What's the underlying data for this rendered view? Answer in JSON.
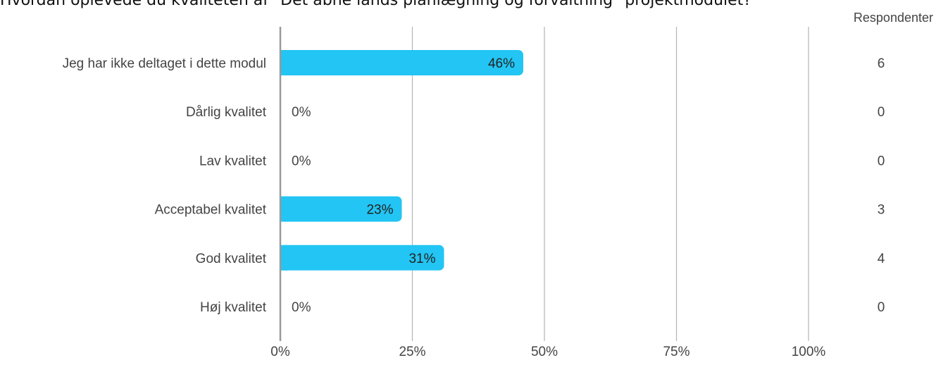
{
  "chart_data": {
    "type": "bar",
    "orientation": "horizontal",
    "title": "Hvordan oplevede du kvaliteten af \"Det åbne lands planlægning og forvaltning\" projektmodulet?",
    "count_header": "Respondenter",
    "categories": [
      "Jeg har ikke deltaget i dette modul",
      "Dårlig kvalitet",
      "Lav kvalitet",
      "Acceptabel kvalitet",
      "God kvalitet",
      "Høj kvalitet"
    ],
    "values": [
      46,
      0,
      0,
      23,
      31,
      0
    ],
    "data_labels": [
      "46%",
      "0%",
      "0%",
      "23%",
      "31%",
      "0%"
    ],
    "counts": [
      "6",
      "0",
      "0",
      "3",
      "4",
      "0"
    ],
    "xlim": [
      0,
      100
    ],
    "x_ticks": [
      0,
      25,
      50,
      75,
      100
    ],
    "x_tick_labels": [
      "0%",
      "25%",
      "50%",
      "75%",
      "100%"
    ],
    "grid": true,
    "bar_color": "#22c5f3",
    "grid_color": "#b3b3b3",
    "axis_color": "#999999"
  }
}
